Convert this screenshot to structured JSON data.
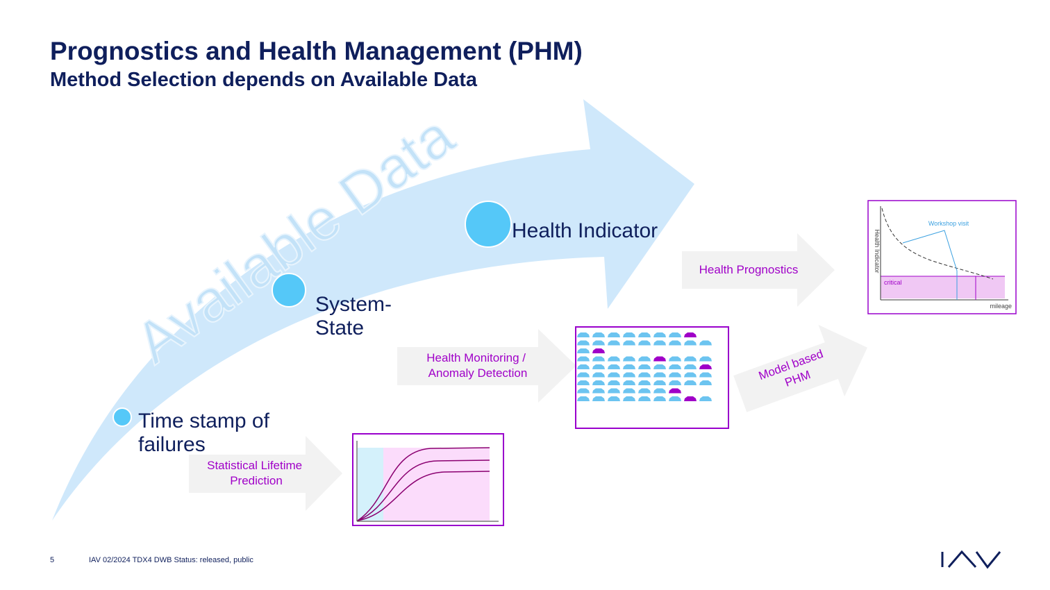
{
  "header": {
    "title": "Prognostics and Health Management (PHM)",
    "subtitle": "Method Selection depends on Available Data"
  },
  "arrow_label": "Available Data",
  "stages": [
    {
      "lines": [
        "Time stamp of",
        "failures"
      ]
    },
    {
      "lines": [
        "System-",
        "State"
      ]
    },
    {
      "lines": [
        "Health Indicator"
      ]
    }
  ],
  "methods": [
    {
      "lines": [
        "Statistical Lifetime",
        "Prediction"
      ]
    },
    {
      "lines": [
        "Health Monitoring /",
        "Anomaly Detection"
      ]
    },
    {
      "lines": [
        "Health Prognostics"
      ]
    },
    {
      "lines": [
        "Model based",
        "PHM"
      ]
    }
  ],
  "prognostics_chart": {
    "annotation": "Workshop visit",
    "y_label": "Health Indicator",
    "zone": "critical",
    "x_label": "mileage"
  },
  "footer": {
    "page": "5",
    "info": "IAV  02/2024  TDX4  DWB  Status: released, public"
  }
}
